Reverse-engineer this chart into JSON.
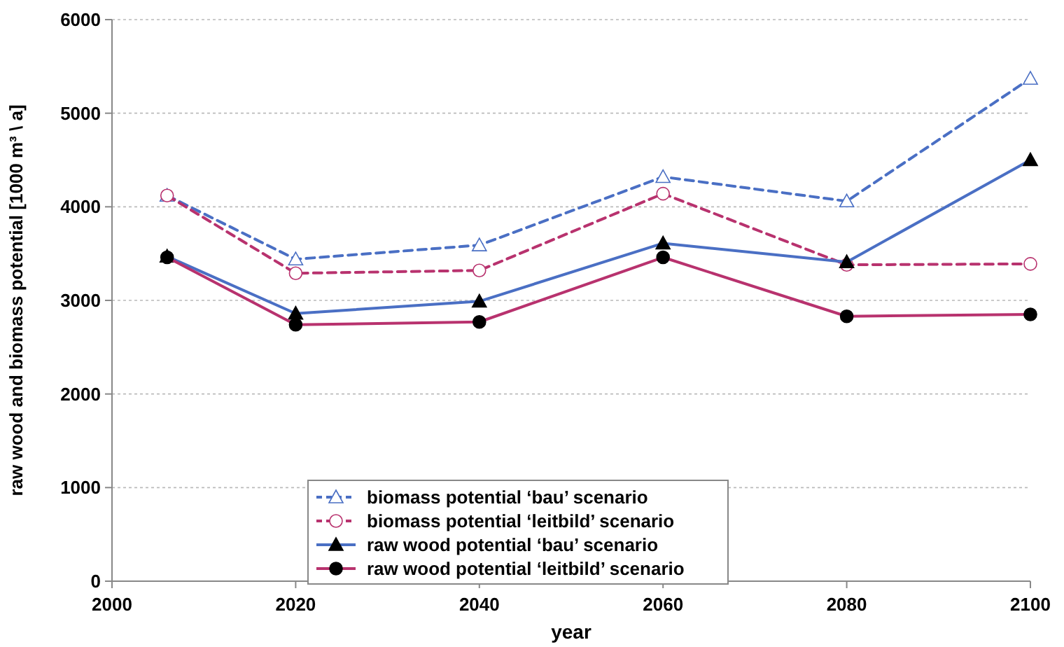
{
  "chart_data": {
    "type": "line",
    "xlabel": "year",
    "ylabel": "raw wood and biomass potential [1000 m³ \\ a]",
    "x": [
      2006,
      2020,
      2040,
      2060,
      2080,
      2100
    ],
    "xlim": [
      2000,
      2100
    ],
    "xticks": [
      2000,
      2020,
      2040,
      2060,
      2080,
      2100
    ],
    "ylim": [
      0,
      6000
    ],
    "yticks": [
      0,
      1000,
      2000,
      3000,
      4000,
      5000,
      6000
    ],
    "grid": "y",
    "legend": "bottom",
    "series": [
      {
        "name": "biomass potential ‘bau’ scenario",
        "color": "#4a6fc4",
        "line_style": "dashed",
        "marker": "triangle",
        "values": [
          4120,
          3440,
          3590,
          4320,
          4060,
          5370
        ]
      },
      {
        "name": "biomass potential ‘leitbild’ scenario",
        "color": "#b8326e",
        "line_style": "dashed",
        "marker": "circle",
        "values": [
          4120,
          3290,
          3320,
          4140,
          3380,
          3390
        ]
      },
      {
        "name": "raw wood potential ‘bau’ scenario",
        "color": "#4a6fc4",
        "line_style": "solid",
        "marker": "triangle",
        "values": [
          3470,
          2860,
          2990,
          3610,
          3410,
          4500
        ]
      },
      {
        "name": "raw wood potential ‘leitbild’ scenario",
        "color": "#b8326e",
        "line_style": "solid",
        "marker": "circle",
        "values": [
          3460,
          2740,
          2770,
          3460,
          2830,
          2850
        ]
      }
    ]
  }
}
